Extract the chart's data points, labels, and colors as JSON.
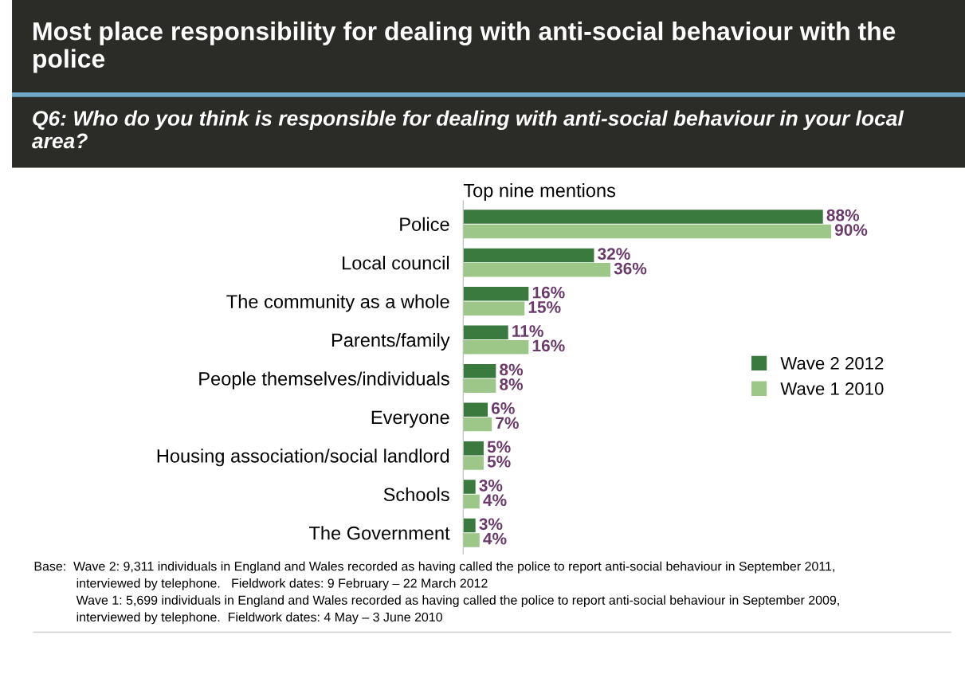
{
  "chart_data": {
    "type": "bar",
    "orientation": "horizontal",
    "title": "Most place responsibility for dealing with anti-social behaviour with the police",
    "subtitle": "Q6: Who do you think is responsible for dealing with anti-social behaviour in your local area?",
    "categories": [
      "Police",
      "Local council",
      "The community as a whole",
      "Parents/family",
      "People themselves/individuals",
      "Everyone",
      "Housing association/social landlord",
      "Schools",
      "The Government"
    ],
    "series": [
      {
        "name": "Wave 2 2012",
        "color": "#3b7a3f",
        "values": [
          88,
          32,
          16,
          11,
          8,
          6,
          5,
          3,
          3
        ],
        "value_labels": [
          "88%",
          "32%",
          "16%",
          "11%",
          "8%",
          "6%",
          "5%",
          "3%",
          "3%"
        ]
      },
      {
        "name": "Wave 1 2010",
        "color": "#9cc789",
        "values": [
          90,
          36,
          15,
          16,
          8,
          7,
          5,
          4,
          4
        ],
        "value_labels": [
          "90%",
          "36%",
          "15%",
          "16%",
          "8%",
          "7%",
          "5%",
          "4%",
          "4%"
        ]
      }
    ],
    "tick_labels": "y",
    "legend": "right",
    "grid": false,
    "annotations": [
      "Top nine mentions",
      "Base:  Wave 2: 9,311 individuals in England and Wales recorded as having called the police to report anti-social behaviour in September 2011,\n            interviewed by telephone.   Fieldwork dates: 9 February – 22 March 2012\n            Wave 1: 5,699 individuals in England and Wales recorded as having called the police to report anti-social behaviour in September 2009,\n            interviewed by telephone.  Fieldwork dates: 4 May – 3 June 2010"
    ]
  }
}
